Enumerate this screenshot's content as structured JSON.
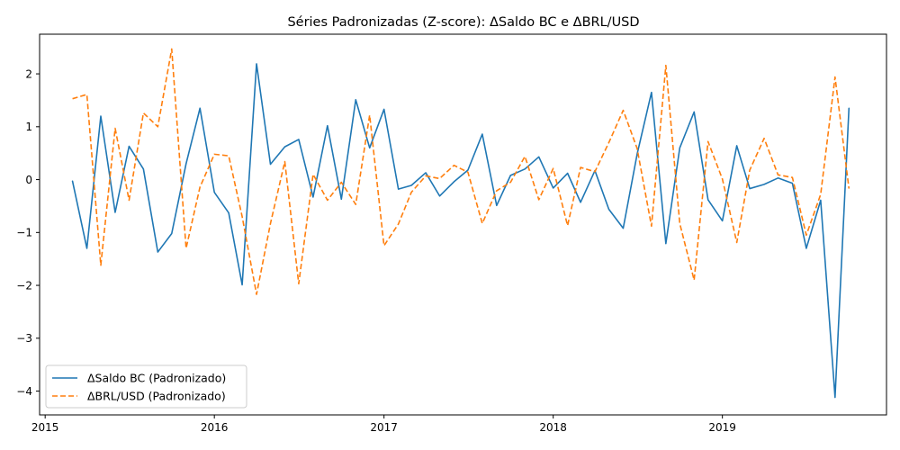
{
  "chart_data": {
    "type": "line",
    "title": "Séries Padronizadas (Z-score): ΔSaldo BC e ΔBRL/USD",
    "xlabel": "",
    "ylabel": "",
    "xlim": [
      "2014-12-20",
      "2019-12-21"
    ],
    "ylim": [
      -4.45,
      2.75
    ],
    "x_ticks": [
      "2015",
      "2016",
      "2017",
      "2018",
      "2019"
    ],
    "y_ticks": [
      "2",
      "1",
      "0",
      "−1",
      "−2",
      "−3",
      "−4"
    ],
    "grid": false,
    "legend_position": "lower-left",
    "x": [
      "2015-03",
      "2015-04",
      "2015-05",
      "2015-06",
      "2015-07",
      "2015-08",
      "2015-09",
      "2015-10",
      "2015-11",
      "2015-12",
      "2016-01",
      "2016-02",
      "2016-03",
      "2016-04",
      "2016-05",
      "2016-06",
      "2016-07",
      "2016-08",
      "2016-09",
      "2016-10",
      "2016-11",
      "2016-12",
      "2017-01",
      "2017-02",
      "2017-03",
      "2017-04",
      "2017-05",
      "2017-06",
      "2017-07",
      "2017-08",
      "2017-09",
      "2017-10",
      "2017-11",
      "2017-12",
      "2018-01",
      "2018-02",
      "2018-03",
      "2018-04",
      "2018-05",
      "2018-06",
      "2018-07",
      "2018-08",
      "2018-09",
      "2018-10",
      "2018-11",
      "2018-12",
      "2019-01",
      "2019-02",
      "2019-03",
      "2019-04",
      "2019-05",
      "2019-06",
      "2019-07",
      "2019-08",
      "2019-09",
      "2019-10"
    ],
    "series": [
      {
        "name": "ΔSaldo BC (Padronizado)",
        "color": "#1f77b4",
        "style": "solid",
        "values": [
          -0.03,
          -1.3,
          1.2,
          -0.62,
          0.63,
          0.2,
          -1.37,
          -1.02,
          0.3,
          1.35,
          -0.24,
          -0.63,
          -1.99,
          2.19,
          0.29,
          0.62,
          0.76,
          -0.33,
          1.02,
          -0.37,
          1.51,
          0.6,
          1.33,
          -0.18,
          -0.11,
          0.13,
          -0.31,
          -0.04,
          0.18,
          0.86,
          -0.49,
          0.08,
          0.2,
          0.43,
          -0.16,
          0.12,
          -0.43,
          0.17,
          -0.56,
          -0.92,
          0.48,
          1.65,
          -1.21,
          0.6,
          1.28,
          -0.38,
          -0.78,
          0.64,
          -0.17,
          -0.09,
          0.03,
          -0.07,
          -1.3,
          -0.39,
          -4.12,
          1.35
        ]
      },
      {
        "name": "ΔBRL/USD (Padronizado)",
        "color": "#ff7f0e",
        "style": "dashed",
        "values": [
          1.53,
          1.61,
          -1.62,
          0.97,
          -0.39,
          1.26,
          1.0,
          2.47,
          -1.3,
          -0.14,
          0.48,
          0.45,
          -0.7,
          -2.17,
          -0.83,
          0.34,
          -1.97,
          0.1,
          -0.39,
          -0.05,
          -0.47,
          1.22,
          -1.25,
          -0.84,
          -0.24,
          0.07,
          0.02,
          0.27,
          0.14,
          -0.83,
          -0.21,
          -0.05,
          0.44,
          -0.38,
          0.21,
          -0.87,
          0.23,
          0.15,
          0.7,
          1.31,
          0.59,
          -0.88,
          2.16,
          -0.83,
          -1.9,
          0.72,
          0.01,
          -1.19,
          0.18,
          0.78,
          0.09,
          0.04,
          -1.05,
          -0.28,
          1.94,
          -0.17
        ]
      }
    ]
  }
}
